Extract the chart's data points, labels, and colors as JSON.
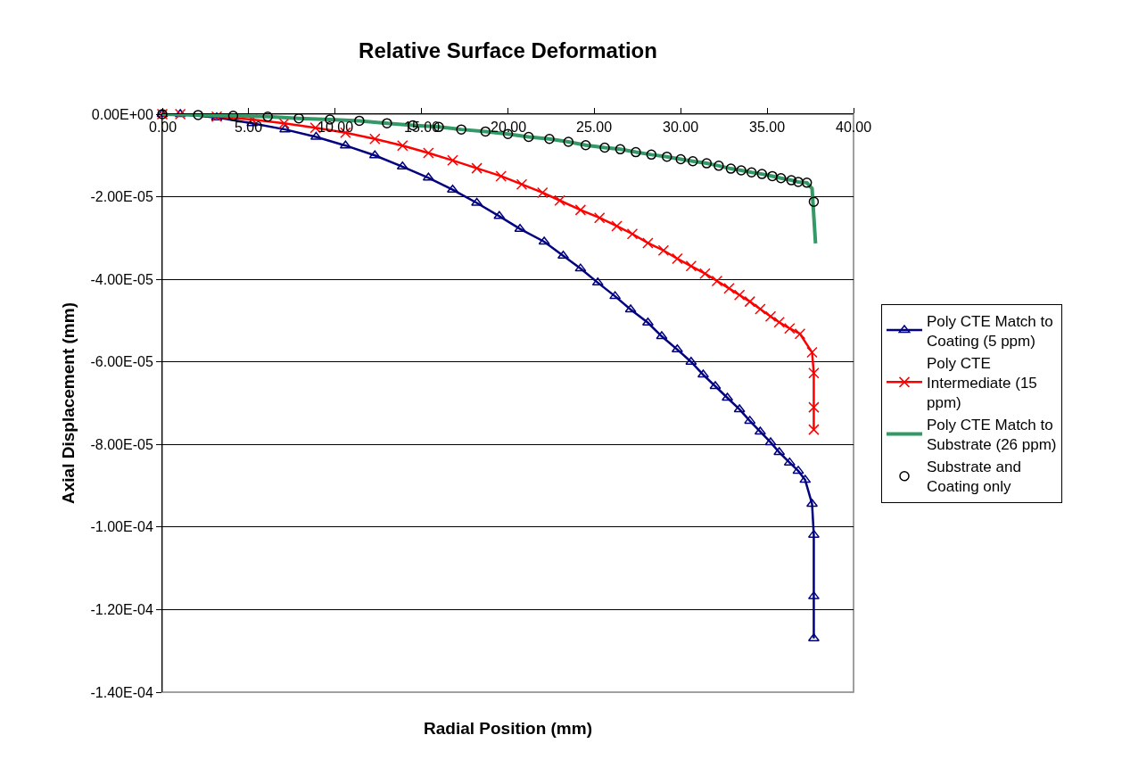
{
  "chart_data": {
    "type": "line",
    "title": "Relative Surface Deformation",
    "xlabel": "Radial Position (mm)",
    "ylabel": "Axial Displacement (mm)",
    "xlim": [
      0,
      40
    ],
    "xticks": [
      {
        "value": 0,
        "label": "0.00"
      },
      {
        "value": 5,
        "label": "5.00"
      },
      {
        "value": 10,
        "label": "10.00"
      },
      {
        "value": 15,
        "label": "15.00"
      },
      {
        "value": 20,
        "label": "20.00"
      },
      {
        "value": 25,
        "label": "25.00"
      },
      {
        "value": 30,
        "label": "30.00"
      },
      {
        "value": 35,
        "label": "35.00"
      },
      {
        "value": 40,
        "label": "40.00"
      }
    ],
    "ylim": [
      -0.00014,
      0
    ],
    "yticks": [
      {
        "value": 0,
        "label": "0.00E+00"
      },
      {
        "value": -2e-05,
        "label": "-2.00E-05"
      },
      {
        "value": -4e-05,
        "label": "-4.00E-05"
      },
      {
        "value": -6e-05,
        "label": "-6.00E-05"
      },
      {
        "value": -8e-05,
        "label": "-8.00E-05"
      },
      {
        "value": -0.0001,
        "label": "-1.00E-04"
      },
      {
        "value": -0.00012,
        "label": "-1.20E-04"
      },
      {
        "value": -0.00014,
        "label": "-1.40E-04"
      }
    ],
    "grid": "y",
    "legend": "right",
    "series": [
      {
        "name": "Poly CTE Match to Coating (5 ppm)",
        "color": "#000080",
        "marker": "triangle",
        "x": [
          0,
          1.04,
          3.15,
          5.2,
          7.1,
          8.9,
          10.6,
          12.3,
          13.9,
          15.4,
          16.8,
          18.2,
          19.5,
          20.7,
          22.1,
          23.2,
          24.2,
          25.2,
          26.2,
          27.1,
          28.1,
          28.9,
          29.8,
          30.6,
          31.3,
          32.0,
          32.7,
          33.4,
          34.0,
          34.6,
          35.2,
          35.7,
          36.3,
          36.8,
          37.2,
          37.6,
          37.7,
          37.7,
          37.7
        ],
        "values": [
          0,
          0,
          -8e-07,
          -2.2e-06,
          -3.7e-06,
          -5.5e-06,
          -7.6e-06,
          -1e-05,
          -1.27e-05,
          -1.54e-05,
          -1.83e-05,
          -2.15e-05,
          -2.47e-05,
          -2.78e-05,
          -3.09e-05,
          -3.43e-05,
          -3.74e-05,
          -4.08e-05,
          -4.41e-05,
          -4.73e-05,
          -5.05e-05,
          -5.38e-05,
          -5.7e-05,
          -6e-05,
          -6.31e-05,
          -6.59e-05,
          -6.87e-05,
          -7.15e-05,
          -7.43e-05,
          -7.69e-05,
          -7.95e-05,
          -8.19e-05,
          -8.44e-05,
          -8.64e-05,
          -8.86e-05,
          -9.44e-05,
          -0.0001019,
          -0.0001168,
          -0.000127
        ]
      },
      {
        "name": "Poly CTE Intermediate (15 ppm)",
        "color": "#ff0000",
        "marker": "cross",
        "x": [
          0,
          1.04,
          3.15,
          5.2,
          7.05,
          8.86,
          10.6,
          12.3,
          13.9,
          15.4,
          16.8,
          18.2,
          19.6,
          20.8,
          22.0,
          23.0,
          24.2,
          25.3,
          26.3,
          27.2,
          28.1,
          29.0,
          29.8,
          30.6,
          31.4,
          32.1,
          32.8,
          33.4,
          34.0,
          34.6,
          35.2,
          35.7,
          36.3,
          36.9,
          37.6,
          37.7,
          37.7,
          37.7
        ],
        "values": [
          0,
          0,
          -6e-07,
          -1.3e-06,
          -2.2e-06,
          -3.3e-06,
          -4.5e-06,
          -6e-06,
          -7.6e-06,
          -9.4e-06,
          -1.12e-05,
          -1.31e-05,
          -1.5e-05,
          -1.7e-05,
          -1.9e-05,
          -2.09e-05,
          -2.32e-05,
          -2.51e-05,
          -2.71e-05,
          -2.9e-05,
          -3.12e-05,
          -3.3e-05,
          -3.5e-05,
          -3.68e-05,
          -3.86e-05,
          -4.04e-05,
          -4.22e-05,
          -4.38e-05,
          -4.54e-05,
          -4.72e-05,
          -4.9e-05,
          -5.04e-05,
          -5.19e-05,
          -5.32e-05,
          -5.77e-05,
          -6.27e-05,
          -7.1e-05,
          -7.64e-05
        ]
      },
      {
        "name": "Poly CTE Match to Substrate (26 ppm)",
        "color": "#339966",
        "marker": "none",
        "x": [
          0,
          2.07,
          4.1,
          6.1,
          7.9,
          9.7,
          11.4,
          13.0,
          14.5,
          16.0,
          17.3,
          18.7,
          20.0,
          21.2,
          22.4,
          23.5,
          24.5,
          25.6,
          26.5,
          27.4,
          28.3,
          29.2,
          30.0,
          30.7,
          31.5,
          32.2,
          32.9,
          33.5,
          34.1,
          34.7,
          35.3,
          35.8,
          36.4,
          36.8,
          37.3,
          37.6,
          37.8
        ],
        "values": [
          0,
          -2e-07,
          -4e-07,
          -6e-07,
          -1e-06,
          -1.3e-06,
          -1.6e-06,
          -2.2e-06,
          -2.7e-06,
          -3.1e-06,
          -3.7e-06,
          -4.2e-06,
          -4.8e-06,
          -5.5e-06,
          -6e-06,
          -6.7e-06,
          -7.5e-06,
          -8.1e-06,
          -8.5e-06,
          -9.2e-06,
          -9.8e-06,
          -1.03e-05,
          -1.09e-05,
          -1.14e-05,
          -1.19e-05,
          -1.25e-05,
          -1.32e-05,
          -1.36e-05,
          -1.41e-05,
          -1.45e-05,
          -1.5e-05,
          -1.55e-05,
          -1.6e-05,
          -1.64e-05,
          -1.66e-05,
          -1.8e-05,
          -3.13e-05
        ]
      },
      {
        "name": "Substrate and Coating only",
        "color": "#000000",
        "type": "scatter",
        "marker": "circle",
        "x": [
          0,
          2.07,
          4.1,
          6.1,
          7.9,
          9.7,
          11.4,
          13.0,
          14.5,
          16.0,
          17.3,
          18.7,
          20.0,
          21.2,
          22.4,
          23.5,
          24.5,
          25.6,
          26.5,
          27.4,
          28.3,
          29.2,
          30.0,
          30.7,
          31.5,
          32.2,
          32.9,
          33.5,
          34.1,
          34.7,
          35.3,
          35.8,
          36.4,
          36.8,
          37.3,
          37.7
        ],
        "values": [
          0,
          -2e-07,
          -4e-07,
          -6e-07,
          -1e-06,
          -1.3e-06,
          -1.6e-06,
          -2.2e-06,
          -2.7e-06,
          -3.1e-06,
          -3.7e-06,
          -4.2e-06,
          -4.8e-06,
          -5.5e-06,
          -6e-06,
          -6.7e-06,
          -7.5e-06,
          -8.1e-06,
          -8.5e-06,
          -9.2e-06,
          -9.8e-06,
          -1.03e-05,
          -1.09e-05,
          -1.14e-05,
          -1.19e-05,
          -1.25e-05,
          -1.32e-05,
          -1.36e-05,
          -1.41e-05,
          -1.45e-05,
          -1.5e-05,
          -1.55e-05,
          -1.6e-05,
          -1.64e-05,
          -1.66e-05,
          -2.12e-05
        ]
      }
    ]
  }
}
